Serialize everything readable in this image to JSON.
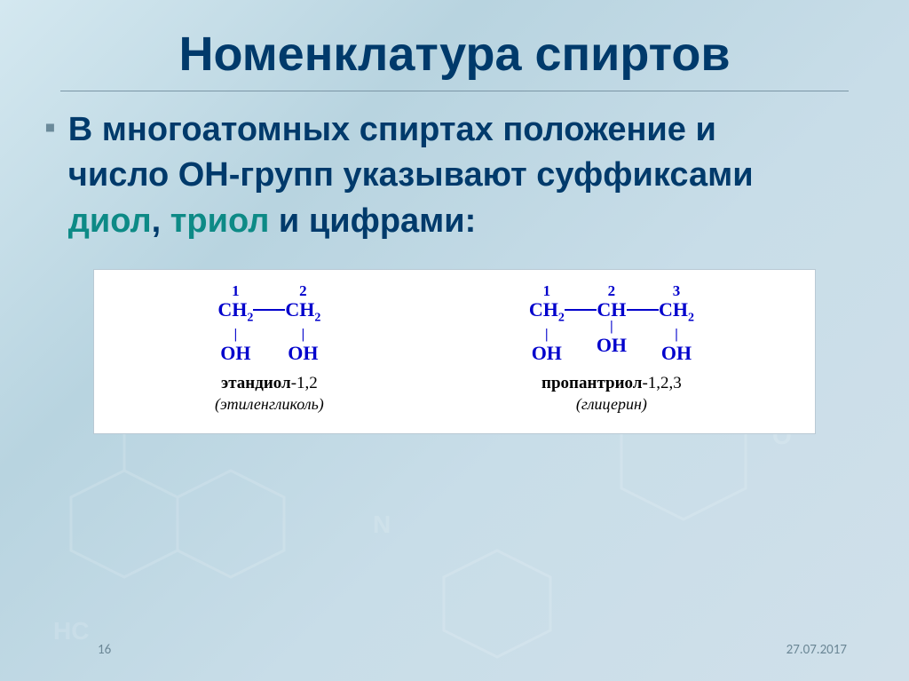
{
  "title": "Номенклатура спиртов",
  "bullet_glyph": "▪",
  "body_text": {
    "line1_a": "В многоатомных спиртах положение и",
    "line2_a": "число ОН-групп указывают суффиксами",
    "hl1": "диол",
    "sep": ", ",
    "hl2": "триол",
    "tail": " и цифрами:"
  },
  "molecules": [
    {
      "units": [
        {
          "locant": "1",
          "atom_html": "CH<sub>2</sub>",
          "oh": "OH"
        },
        {
          "locant": "2",
          "atom_html": "CH<sub>2</sub>",
          "oh": "OH"
        }
      ],
      "name_prefix": "этан",
      "name_suffix_bold": "диол",
      "name_locants": "-1,2",
      "trivial": "(этиленгликоль)"
    },
    {
      "units": [
        {
          "locant": "1",
          "atom_html": "CH<sub>2</sub>",
          "oh": "OH"
        },
        {
          "locant": "2",
          "atom_html": "CH",
          "oh": "OH"
        },
        {
          "locant": "3",
          "atom_html": "CH<sub>2</sub>",
          "oh": "OH"
        }
      ],
      "name_prefix": "пропан",
      "name_suffix_bold": "триол",
      "name_locants": "-1,2,3",
      "trivial": "(глицерин)"
    }
  ],
  "footer": {
    "page": "16",
    "date": "27.07.2017"
  },
  "colors": {
    "title": "#003a6b",
    "highlight": "#0d8a86",
    "chem": "#0000cc",
    "footer": "#6b8796",
    "box_bg": "#ffffff",
    "box_border": "#b9c9d4"
  }
}
